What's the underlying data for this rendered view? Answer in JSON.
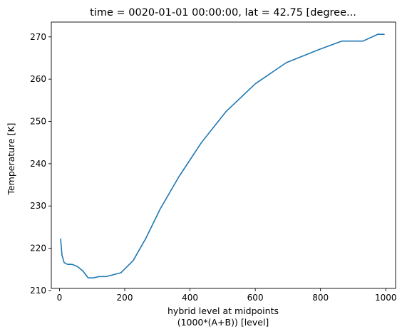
{
  "chart_data": {
    "type": "line",
    "title": "time = 0020-01-01 00:00:00, lat = 42.75 [degree...",
    "xlabel_line1": "hybrid level at midpoints",
    "xlabel_line2": "(1000*(A+B)) [level]",
    "ylabel": "Temperature [K]",
    "xlim": [
      -25,
      1030
    ],
    "ylim": [
      210.5,
      273.5
    ],
    "xticks": [
      0,
      200,
      400,
      600,
      800,
      1000
    ],
    "yticks": [
      210,
      220,
      230,
      240,
      250,
      260,
      270
    ],
    "grid": false,
    "series": [
      {
        "color": "#1f77b4",
        "x": [
          3.6,
          7.6,
          14.4,
          24.6,
          38.2,
          54.6,
          72.0,
          87.8,
          103.5,
          121.5,
          142.7,
          168.2,
          188.2,
          226.0,
          265.0,
          308.0,
          365.0,
          435.0,
          510.0,
          600.0,
          695.0,
          795.0,
          865.0,
          930.0,
          975.0,
          995.0
        ],
        "y": [
          222.2,
          218.4,
          216.6,
          216.2,
          216.2,
          215.7,
          214.6,
          213.0,
          213.0,
          213.3,
          213.3,
          213.8,
          214.2,
          217.1,
          222.4,
          229.2,
          236.8,
          245.0,
          252.3,
          258.9,
          263.9,
          267.0,
          269.0,
          269.0,
          270.6,
          270.6
        ]
      }
    ]
  }
}
